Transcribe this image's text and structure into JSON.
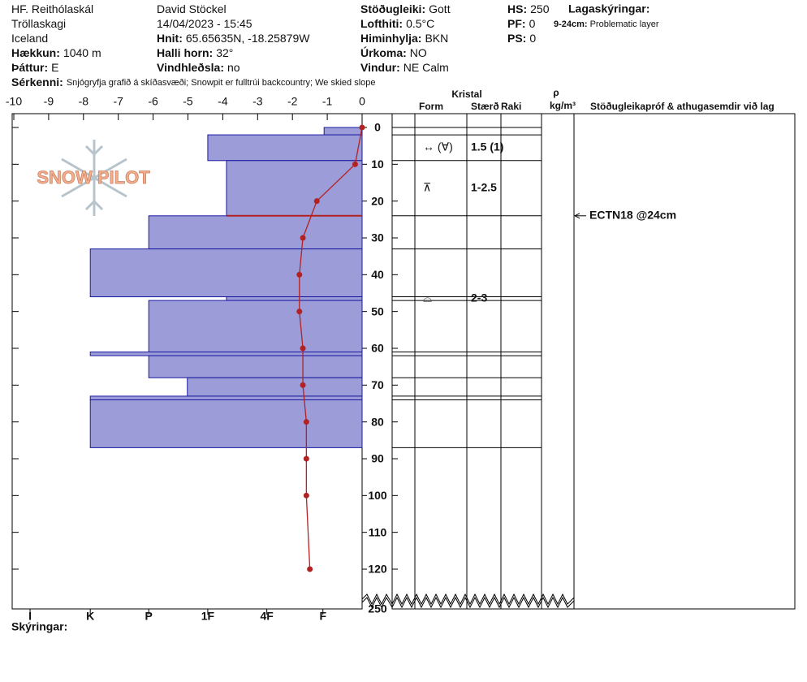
{
  "header": {
    "fields": [
      {
        "value": "HF. Reithólaskál"
      },
      {
        "value": "Tröllaskagi"
      },
      {
        "value": "Iceland"
      },
      {
        "label": "Hækkun:",
        "value": "1040 m"
      },
      {
        "label": "Þáttur:",
        "value": "E"
      },
      {
        "value": "David Stöckel"
      },
      {
        "value": "14/04/2023 - 15:45"
      },
      {
        "label": "Hnit:",
        "value": "65.65635N, -18.25879W"
      },
      {
        "label": "Halli horn:",
        "value": "32°"
      },
      {
        "label": "Vindhleðsla:",
        "value": "no"
      },
      {
        "label": "Stöðugleiki:",
        "value": "Gott"
      },
      {
        "label": "Lofthiti:",
        "value": "0.5°C"
      },
      {
        "label": "Himinhylja:",
        "value": "BKN"
      },
      {
        "label": "Úrkoma:",
        "value": "NO"
      },
      {
        "label": "Vindur:",
        "value": "NE Calm"
      },
      {
        "label": "HS:",
        "value": "250"
      },
      {
        "label": "PF:",
        "value": "0"
      },
      {
        "label": "PS:",
        "value": "0"
      }
    ],
    "legend_title": "Lagaskýringar:",
    "legend_items": [
      {
        "label": "9-24cm:",
        "value": "Problematic layer"
      }
    ],
    "remarks": {
      "label": "Sérkenni:",
      "value": "Snjógryfja grafið á skíðasvæði; Snowpit er fulltrúi backcountry; We skied slope"
    },
    "notes_label": "Skýringar:"
  },
  "chart_data": {
    "type": "snowpit",
    "logo": "SNOW PILOT",
    "xlim": [
      -10,
      0
    ],
    "xticks": [
      -10,
      -9,
      -8,
      -7,
      -6,
      -5,
      -4,
      -3,
      -2,
      -1,
      0
    ],
    "ylim": [
      0,
      120
    ],
    "yticks": [
      0,
      10,
      20,
      30,
      40,
      50,
      60,
      70,
      80,
      90,
      100,
      110,
      120
    ],
    "depth_bottom": 250,
    "hardness_lim": [
      0,
      6
    ],
    "hardness_ticks": [
      {
        "value": 5.68,
        "label": "I"
      },
      {
        "value": 4.65,
        "label": "K"
      },
      {
        "value": 3.65,
        "label": "P"
      },
      {
        "value": 2.64,
        "label": "1F"
      },
      {
        "value": 1.63,
        "label": "4F"
      },
      {
        "value": 0.67,
        "label": "F"
      }
    ],
    "layers": [
      {
        "top": 0,
        "bottom": 2,
        "hardness": 0.65
      },
      {
        "top": 2,
        "bottom": 9,
        "hardness": 2.64,
        "form": "↔ (∀)",
        "size": "1.5 (1)"
      },
      {
        "top": 9,
        "bottom": 24,
        "hardness": 2.32,
        "form": "⊼",
        "size": "1-2.5"
      },
      {
        "top": 24,
        "bottom": 33,
        "hardness": 3.65
      },
      {
        "top": 33,
        "bottom": 46,
        "hardness": 4.65
      },
      {
        "top": 46,
        "bottom": 47,
        "hardness": 2.32,
        "form": "⌓",
        "size": "2-3"
      },
      {
        "top": 47,
        "bottom": 61,
        "hardness": 3.65
      },
      {
        "top": 61,
        "bottom": 62,
        "hardness": 4.65
      },
      {
        "top": 62,
        "bottom": 68,
        "hardness": 3.65
      },
      {
        "top": 68,
        "bottom": 73,
        "hardness": 2.99
      },
      {
        "top": 73,
        "bottom": 74,
        "hardness": 4.65
      },
      {
        "top": 74,
        "bottom": 87,
        "hardness": 4.65
      }
    ],
    "layer_color": "#9c9cd8",
    "layer_edge": "#1a1aa0",
    "temperature": {
      "color": "#b22222",
      "depths": [
        0,
        10,
        20,
        30,
        40,
        50,
        60,
        70,
        80,
        90,
        100,
        120
      ],
      "values": [
        0,
        -0.2,
        -1.3,
        -1.7,
        -1.8,
        -1.8,
        -1.7,
        -1.7,
        -1.6,
        -1.6,
        -1.6,
        -1.5
      ]
    },
    "tests": [
      {
        "depth": 24,
        "label": "ECTN18 @24cm"
      }
    ],
    "columns": {
      "crystal": "Kristal",
      "form": "Form",
      "size": "Stærð",
      "wetness": "Raki",
      "rho": "ρ",
      "density_unit": "kg/m³",
      "stability": "Stöðugleikapróf & athugasemdir við lag"
    }
  }
}
